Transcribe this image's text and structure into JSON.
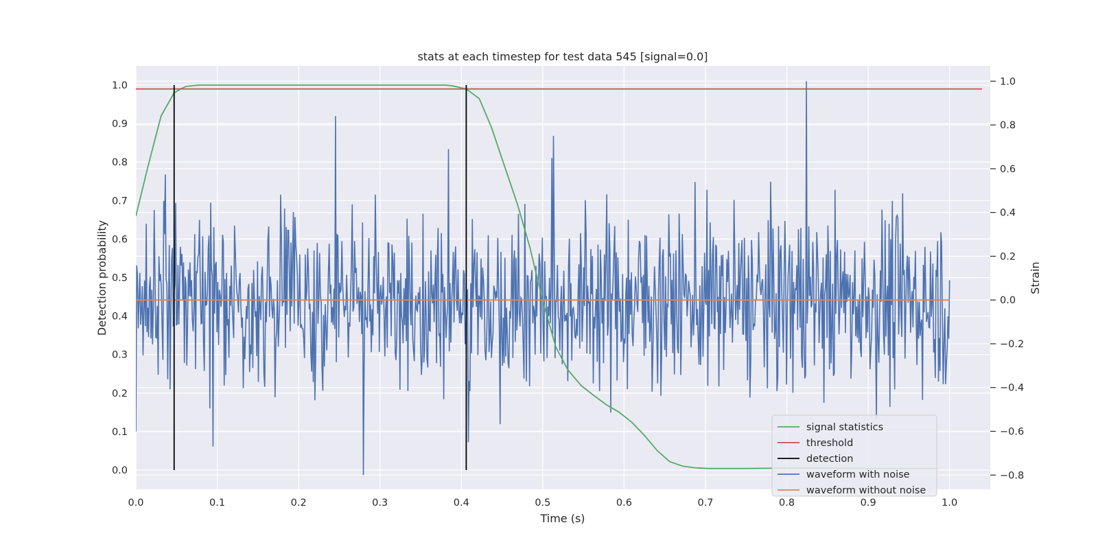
{
  "chart_data": {
    "type": "line",
    "title": "stats at each timestep for test data 545 [signal=0.0]",
    "xlabel": "Time (s)",
    "ylabel_left": "Detection probability",
    "ylabel_right": "Strain",
    "xlim": [
      0.0,
      1.05
    ],
    "ylim_left": [
      -0.05,
      1.05
    ],
    "ylim_right": [
      -0.865,
      1.07
    ],
    "grid": true,
    "legend_position": "lower-right",
    "x_ticks": [
      "0.0",
      "0.1",
      "0.2",
      "0.3",
      "0.4",
      "0.5",
      "0.6",
      "0.7",
      "0.8",
      "0.9",
      "1.0"
    ],
    "y_left_ticks": [
      "0.0",
      "0.1",
      "0.2",
      "0.3",
      "0.4",
      "0.5",
      "0.6",
      "0.7",
      "0.8",
      "0.9",
      "1.0"
    ],
    "y_right_ticks": [
      "−0.8",
      "−0.6",
      "−0.4",
      "−0.2",
      "0.0",
      "0.2",
      "0.4",
      "0.6",
      "0.8",
      "1.0"
    ],
    "colors": {
      "signal_statistics": "#55a868",
      "threshold": "#c44e52",
      "detection": "#000000",
      "waveform_with_noise": "#4c72b0",
      "waveform_without_noise": "#dd8452",
      "plot_background": "#eaeaf2",
      "grid": "#ffffff"
    },
    "series": [
      {
        "name": "signal statistics",
        "axis": "left",
        "x": [
          0.0,
          0.015,
          0.031,
          0.047,
          0.055,
          0.062,
          0.078,
          0.1,
          0.2,
          0.3,
          0.38,
          0.39,
          0.406,
          0.422,
          0.437,
          0.453,
          0.469,
          0.484,
          0.5,
          0.516,
          0.531,
          0.547,
          0.562,
          0.578,
          0.594,
          0.609,
          0.625,
          0.641,
          0.656,
          0.672,
          0.687,
          0.703,
          0.75,
          0.8,
          0.85,
          0.9,
          0.95,
          0.984
        ],
        "values": [
          0.66,
          0.79,
          0.92,
          0.98,
          0.99,
          0.997,
          1.0,
          1.0,
          1.0,
          1.0,
          1.0,
          0.998,
          0.99,
          0.965,
          0.89,
          0.79,
          0.69,
          0.58,
          0.44,
          0.32,
          0.26,
          0.22,
          0.195,
          0.17,
          0.15,
          0.125,
          0.09,
          0.05,
          0.022,
          0.01,
          0.006,
          0.004,
          0.004,
          0.005,
          0.005,
          0.004,
          0.004,
          0.004
        ]
      },
      {
        "name": "threshold",
        "axis": "left",
        "x": [
          0.0,
          1.04
        ],
        "values": [
          0.99,
          0.99
        ]
      },
      {
        "name": "detection",
        "axis": "left",
        "type": "vlines",
        "x": [
          0.047,
          0.406
        ],
        "ymin": 0.0,
        "ymax": 1.0
      },
      {
        "name": "waveform with noise",
        "axis": "right",
        "x_start": 0.0,
        "x_end": 1.0,
        "peaks": [
          {
            "x": 0.245,
            "value": 0.84
          },
          {
            "x": 0.28,
            "value": -0.8
          },
          {
            "x": 0.824,
            "value": 1.0
          },
          {
            "x": 0.095,
            "value": -0.67
          },
          {
            "x": 0.384,
            "value": 0.69
          },
          {
            "x": 0.513,
            "value": 0.75
          },
          {
            "x": 0.409,
            "value": -0.65
          }
        ],
        "amplitude_std": 0.28
      },
      {
        "name": "waveform without noise",
        "axis": "right",
        "x": [
          0.0,
          1.0
        ],
        "values": [
          0.0,
          0.0
        ]
      }
    ],
    "legend": [
      "signal statistics",
      "threshold",
      "detection",
      "waveform with noise",
      "waveform without noise"
    ]
  }
}
